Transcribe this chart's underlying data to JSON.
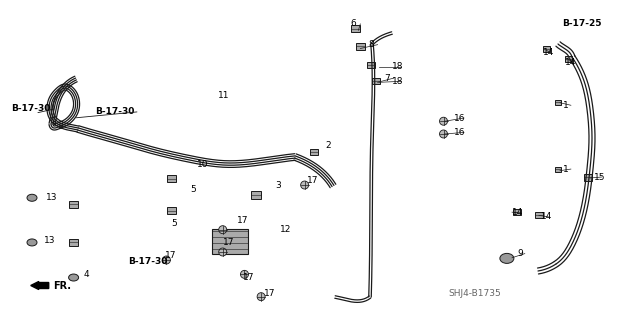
{
  "bg_color": "#ffffff",
  "line_color": "#1a1a1a",
  "diagram_id": "SHJ4-B1735",
  "labels": {
    "1a": [
      0.88,
      0.33,
      "1"
    ],
    "1b": [
      0.88,
      0.53,
      "1"
    ],
    "2": [
      0.508,
      0.455,
      "2"
    ],
    "3": [
      0.43,
      0.58,
      "3"
    ],
    "4": [
      0.13,
      0.86,
      "4"
    ],
    "5a": [
      0.298,
      0.595,
      "5"
    ],
    "5b": [
      0.268,
      0.7,
      "5"
    ],
    "6": [
      0.548,
      0.075,
      "6"
    ],
    "7": [
      0.6,
      0.245,
      "7"
    ],
    "8": [
      0.575,
      0.14,
      "8"
    ],
    "9": [
      0.808,
      0.795,
      "9"
    ],
    "10": [
      0.308,
      0.515,
      "10"
    ],
    "11": [
      0.34,
      0.3,
      "11"
    ],
    "12": [
      0.438,
      0.72,
      "12"
    ],
    "13a": [
      0.072,
      0.62,
      "13"
    ],
    "13b": [
      0.068,
      0.755,
      "13"
    ],
    "14a": [
      0.848,
      0.165,
      "14"
    ],
    "14b": [
      0.882,
      0.195,
      "14"
    ],
    "14c": [
      0.8,
      0.665,
      "14"
    ],
    "14d": [
      0.845,
      0.68,
      "14"
    ],
    "15": [
      0.928,
      0.555,
      "15"
    ],
    "16a": [
      0.71,
      0.37,
      "16"
    ],
    "16b": [
      0.71,
      0.415,
      "16"
    ],
    "17a": [
      0.37,
      0.69,
      "17"
    ],
    "17b": [
      0.348,
      0.76,
      "17"
    ],
    "17c": [
      0.258,
      0.8,
      "17"
    ],
    "17d": [
      0.38,
      0.87,
      "17"
    ],
    "17e": [
      0.412,
      0.92,
      "17"
    ],
    "17f": [
      0.48,
      0.565,
      "17"
    ],
    "18a": [
      0.612,
      0.21,
      "18"
    ],
    "18b": [
      0.612,
      0.255,
      "18"
    ]
  },
  "b_refs": {
    "B-17-30a": [
      0.018,
      0.34,
      "B-17-30"
    ],
    "B-17-30b": [
      0.148,
      0.35,
      "B-17-30"
    ],
    "B-17-30c": [
      0.2,
      0.82,
      "B-17-30"
    ],
    "B-17-25": [
      0.878,
      0.075,
      "B-17-25"
    ]
  }
}
